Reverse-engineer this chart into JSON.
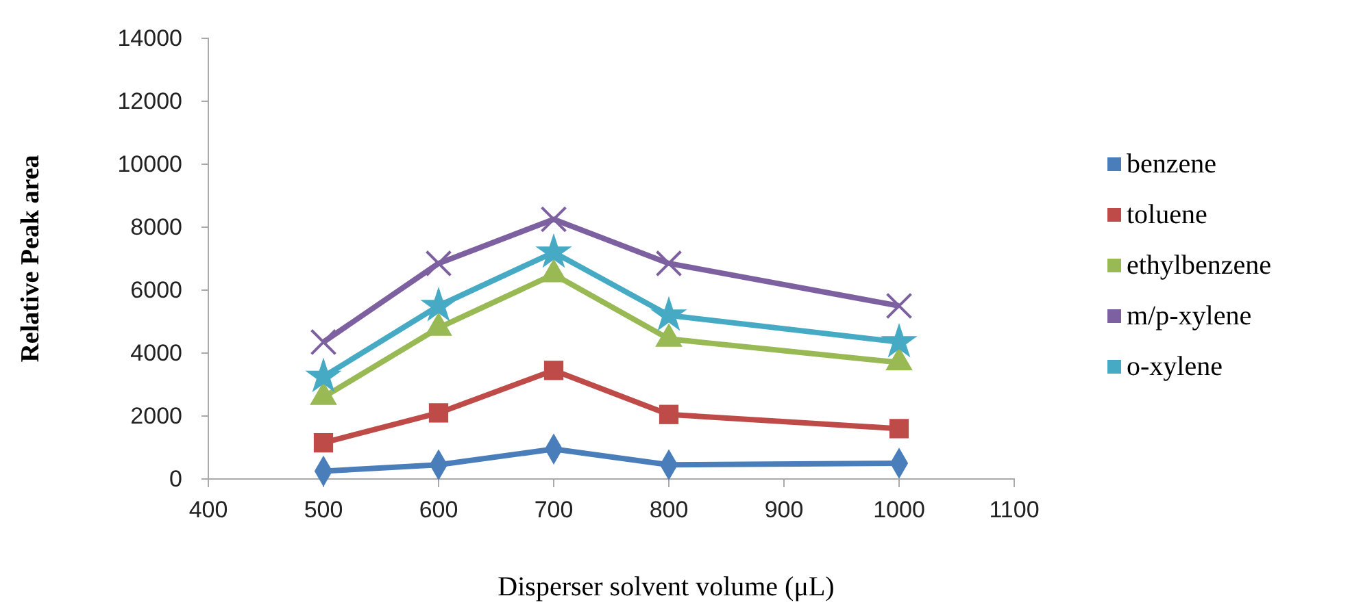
{
  "chart_data": {
    "type": "line",
    "xlabel": "Disperser solvent volume (μL)",
    "ylabel": "Relative Peak area",
    "x": [
      500,
      600,
      700,
      800,
      1000
    ],
    "xlim": [
      400,
      1100
    ],
    "xticks": [
      400,
      500,
      600,
      700,
      800,
      900,
      1000,
      1100
    ],
    "ylim": [
      0,
      14000
    ],
    "yticks": [
      0,
      2000,
      4000,
      6000,
      8000,
      10000,
      12000,
      14000
    ],
    "grid": false,
    "legend": "right",
    "series": [
      {
        "name": "benzene",
        "color": "#4a7ebb",
        "marker": "diamond",
        "values": [
          250,
          450,
          950,
          450,
          500
        ]
      },
      {
        "name": "toluene",
        "color": "#be4b48",
        "marker": "square",
        "values": [
          1150,
          2100,
          3450,
          2050,
          1600
        ]
      },
      {
        "name": "ethylbenzene",
        "color": "#98b954",
        "marker": "triangle",
        "values": [
          2600,
          4800,
          6500,
          4450,
          3700
        ]
      },
      {
        "name": "m/p-xylene",
        "color": "#7d60a0",
        "marker": "cross",
        "values": [
          4350,
          6850,
          8250,
          6850,
          5500
        ]
      },
      {
        "name": "o-xylene",
        "color": "#46aac5",
        "marker": "star",
        "values": [
          3250,
          5500,
          7200,
          5200,
          4350
        ]
      }
    ]
  }
}
